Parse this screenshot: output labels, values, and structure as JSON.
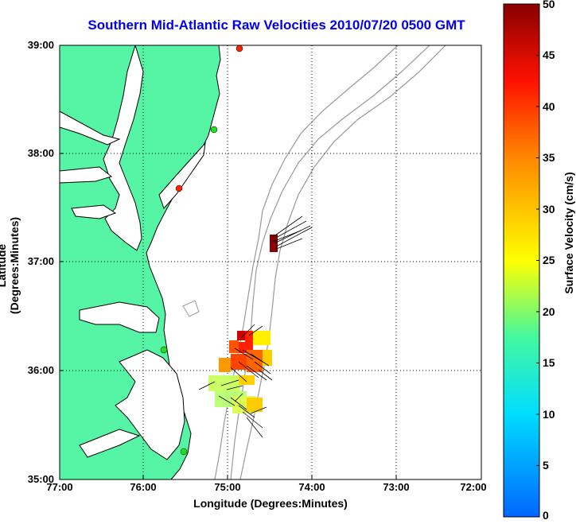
{
  "title": "Southern Mid-Atlantic Raw Velocities 2010/07/20 0500 GMT",
  "xlabel": "Longitude (Degrees:Minutes)",
  "ylabel": "Latitude (Degrees:Minutes)",
  "colorbar_label": "Surface Velocity (cm/s)",
  "x_ticks": [
    "77:00",
    "76:00",
    "75:00",
    "74:00",
    "73:00",
    "72:00"
  ],
  "y_ticks": [
    "39:00",
    "38:00",
    "37:00",
    "36:00",
    "35:00"
  ],
  "colorbar_ticks": [
    "50",
    "45",
    "40",
    "35",
    "30",
    "25",
    "20",
    "15",
    "10",
    "5",
    "0"
  ],
  "colors": {
    "land": "#55f5a5",
    "coast": "#000000",
    "bathymetry": "#999999",
    "title": "#0000ee"
  },
  "chart_data": {
    "type": "map",
    "title": "Southern Mid-Atlantic Raw Velocities 2010/07/20 0500 GMT",
    "xlabel": "Longitude (Degrees:Minutes)",
    "ylabel": "Latitude (Degrees:Minutes)",
    "xlim": [
      "77:00W",
      "72:00W"
    ],
    "ylim": [
      "35:00N",
      "39:00N"
    ],
    "grid": true,
    "colorbar": {
      "label": "Surface Velocity (cm/s)",
      "min": 0,
      "max": 50
    },
    "stations": [
      {
        "lon": -75.1,
        "lat": 38.97,
        "color": "red"
      },
      {
        "lon": -75.15,
        "lat": 38.2,
        "color": "green"
      },
      {
        "lon": -75.55,
        "lat": 37.68,
        "color": "red"
      },
      {
        "lon": -75.72,
        "lat": 36.2,
        "color": "green"
      },
      {
        "lon": -75.5,
        "lat": 35.25,
        "color": "green"
      }
    ],
    "velocity_clusters": [
      {
        "lon": -74.5,
        "lat": 37.15,
        "speed_cm_s": 48
      },
      {
        "lon": -74.85,
        "lat": 36.2,
        "speed_cm_s": 40
      },
      {
        "lon": -75.0,
        "lat": 35.85,
        "speed_cm_s": 22
      },
      {
        "lon": -74.75,
        "lat": 35.5,
        "speed_cm_s": 25
      }
    ]
  }
}
